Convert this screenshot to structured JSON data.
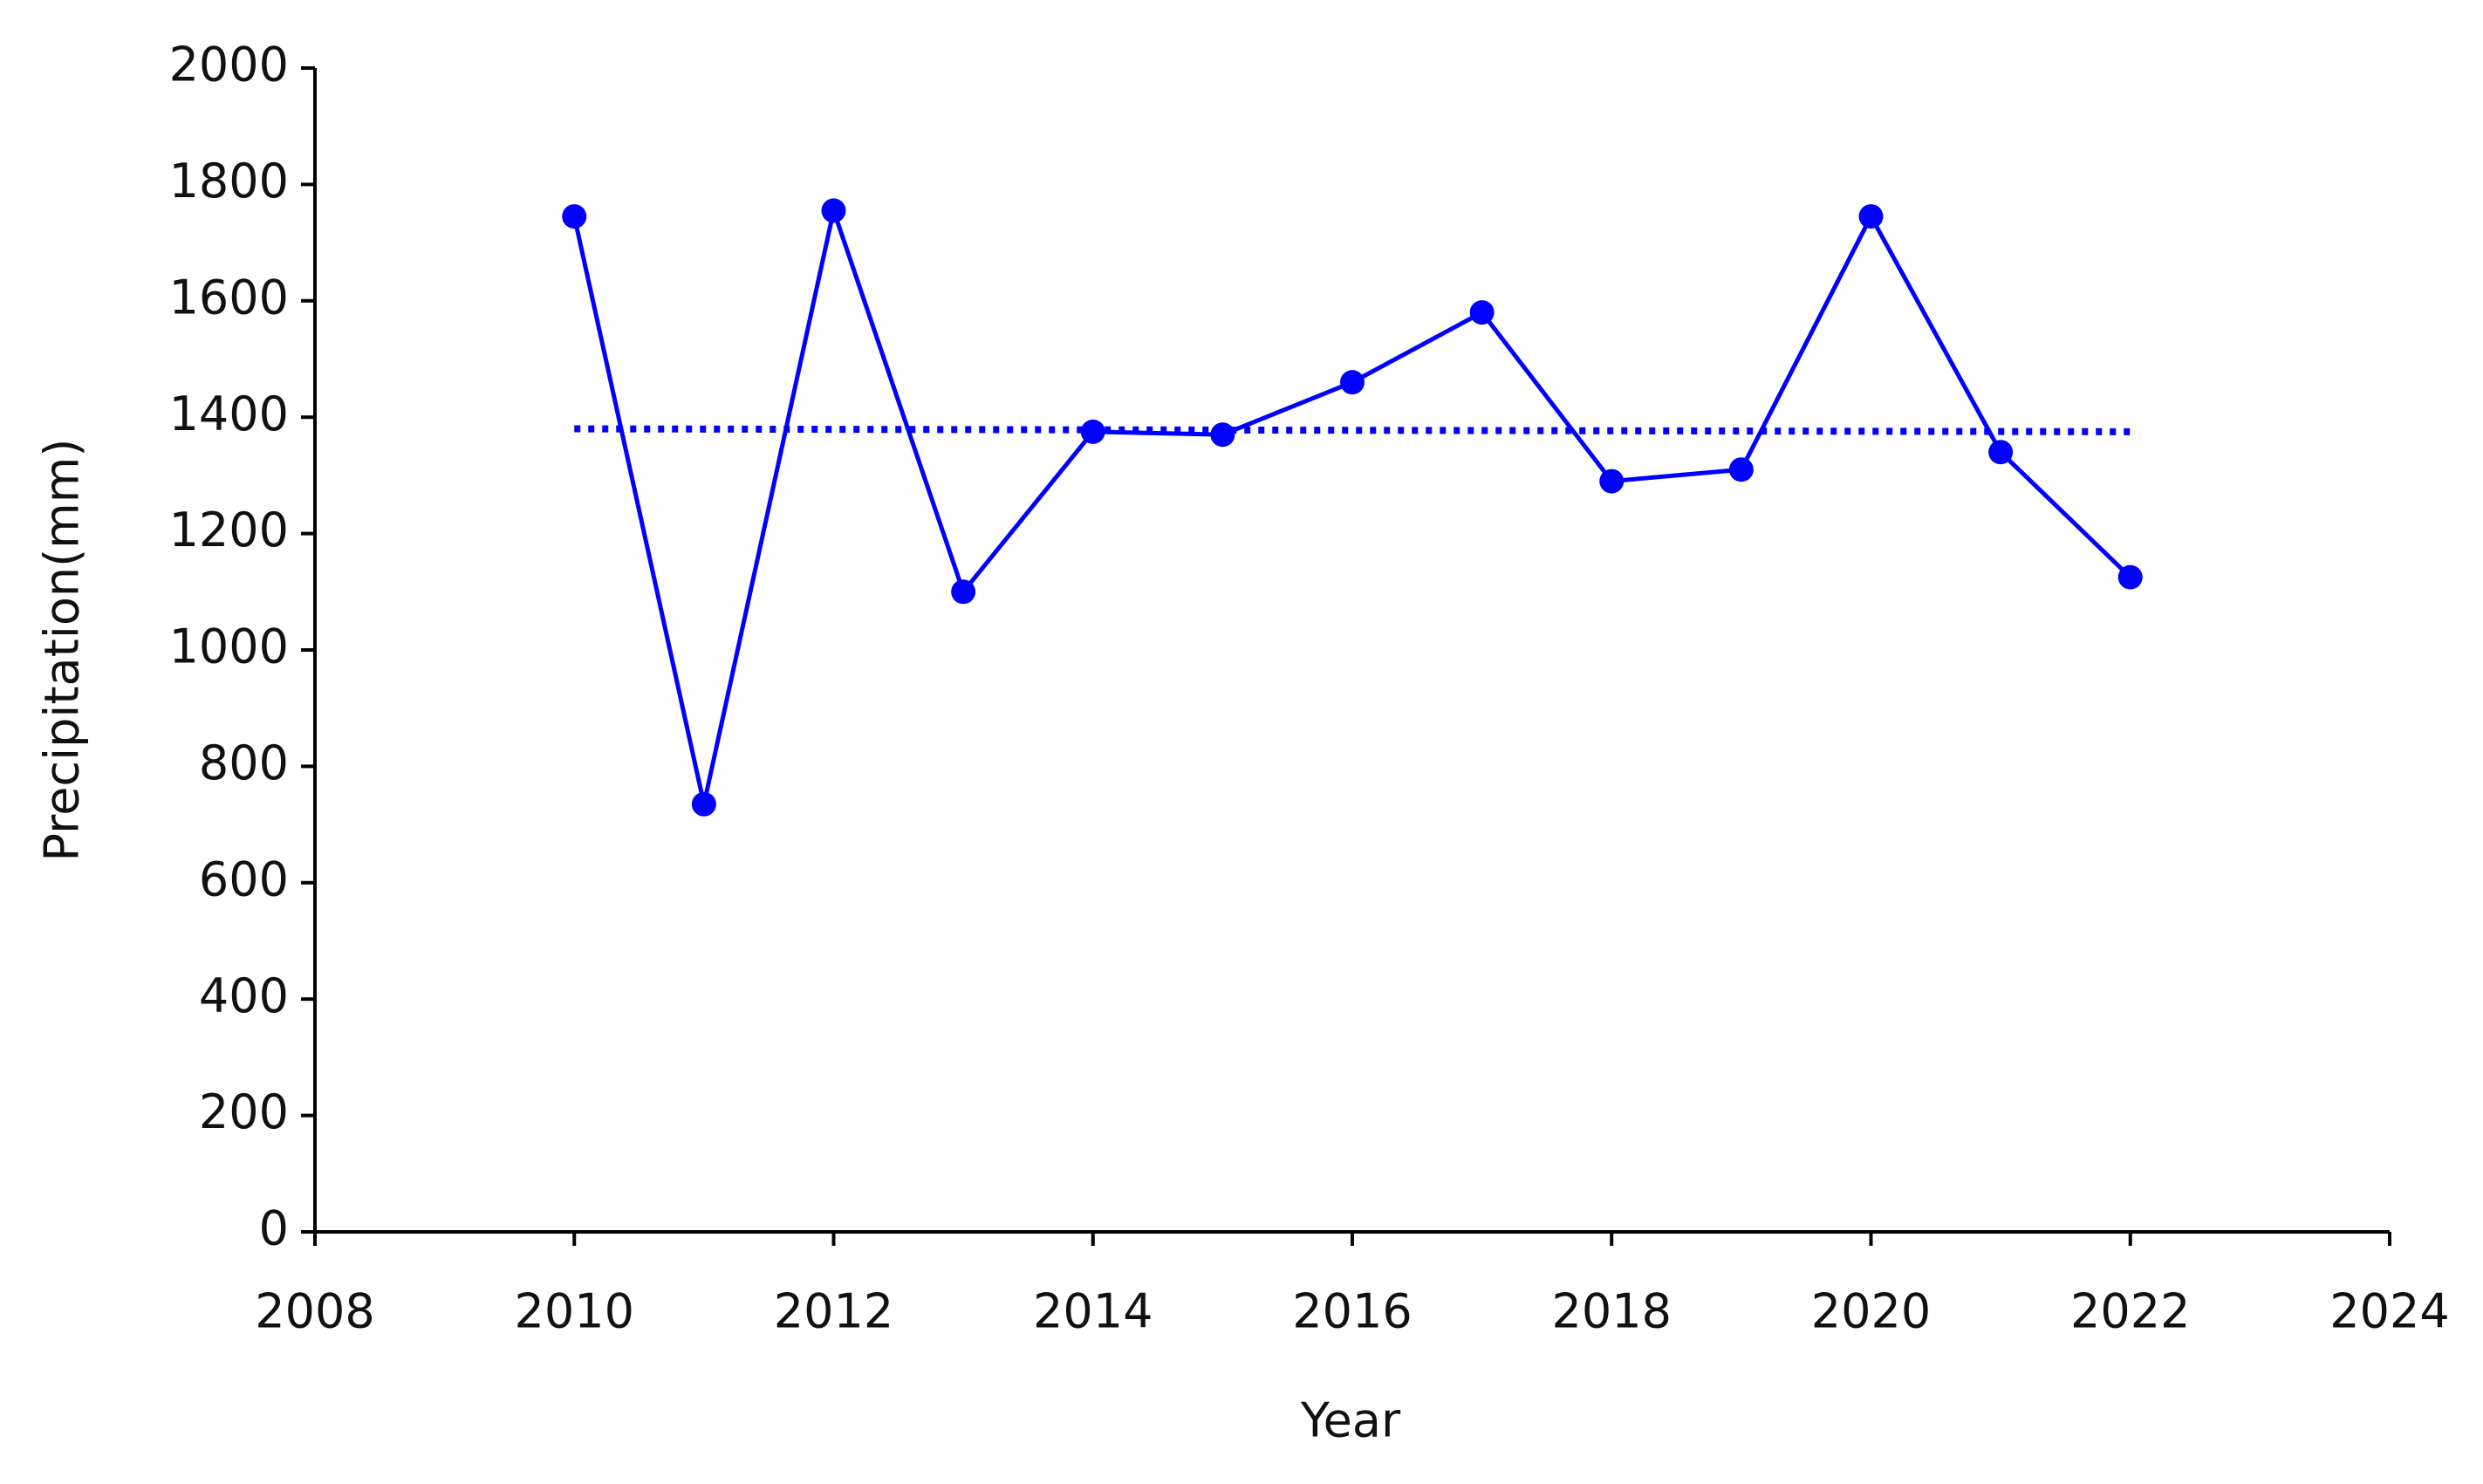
{
  "chart_data": {
    "type": "line",
    "x_label": "Year",
    "y_label": "Precipitation(mm)",
    "x": [
      2010,
      2011,
      2012,
      2013,
      2014,
      2015,
      2016,
      2017,
      2018,
      2019,
      2020,
      2021,
      2022
    ],
    "series": [
      {
        "color": "#0000ff",
        "style": "solid",
        "markers": true,
        "values": [
          1745,
          735,
          1755,
          1100,
          1375,
          1370,
          1460,
          1580,
          1290,
          1310,
          1745,
          1340,
          1125
        ]
      },
      {
        "color": "#0000ff",
        "style": "dotted",
        "markers": false,
        "x": [
          2010,
          2022
        ],
        "values": [
          1380,
          1375
        ]
      }
    ],
    "xlim": [
      2008,
      2024
    ],
    "xticks": [
      2008,
      2010,
      2012,
      2014,
      2016,
      2018,
      2020,
      2022,
      2024
    ],
    "ylim": [
      0,
      2000
    ],
    "yticks": [
      0,
      200,
      400,
      600,
      800,
      1000,
      1200,
      1400,
      1600,
      1800,
      2000
    ],
    "grid": false
  }
}
